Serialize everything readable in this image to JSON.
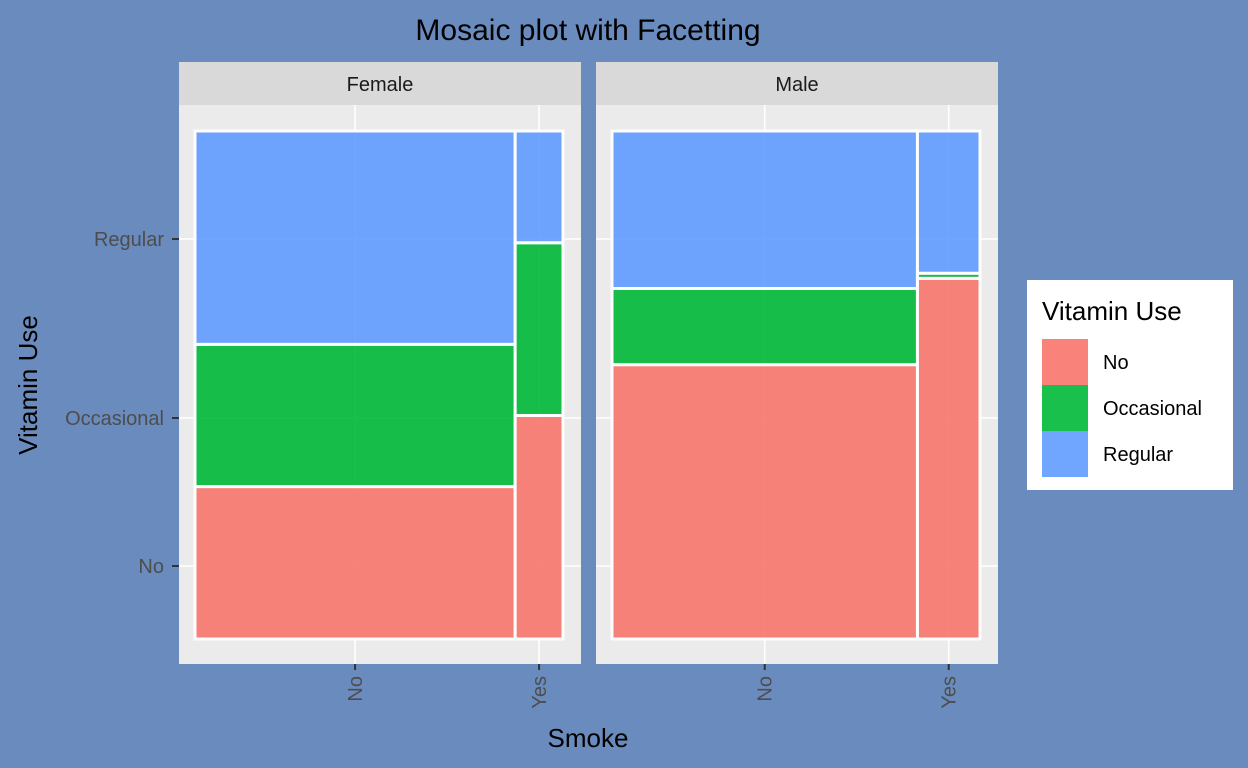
{
  "colors": {
    "No": "#f8766d",
    "Occasional": "#00ba38",
    "Regular": "#619cff"
  },
  "chart_data": {
    "type": "mosaic",
    "title": "Mosaic plot with Facetting",
    "xlabel": "Smoke",
    "ylabel": "Vitamin Use",
    "x_categories": [
      "No",
      "Yes"
    ],
    "y_categories": [
      "No",
      "Occasional",
      "Regular"
    ],
    "legend": {
      "title": "Vitamin Use",
      "entries": [
        "No",
        "Occasional",
        "Regular"
      ],
      "position": "right"
    },
    "facets": [
      {
        "name": "Female",
        "x_shares": {
          "No": 0.87,
          "Yes": 0.13
        },
        "cells": {
          "No": {
            "No": 0.3,
            "Occasional": 0.28,
            "Regular": 0.42
          },
          "Yes": {
            "No": 0.44,
            "Occasional": 0.34,
            "Regular": 0.22
          }
        }
      },
      {
        "name": "Male",
        "x_shares": {
          "No": 0.83,
          "Yes": 0.17
        },
        "cells": {
          "No": {
            "No": 0.54,
            "Occasional": 0.15,
            "Regular": 0.31
          },
          "Yes": {
            "No": 0.71,
            "Occasional": 0.01,
            "Regular": 0.28
          }
        }
      }
    ]
  }
}
